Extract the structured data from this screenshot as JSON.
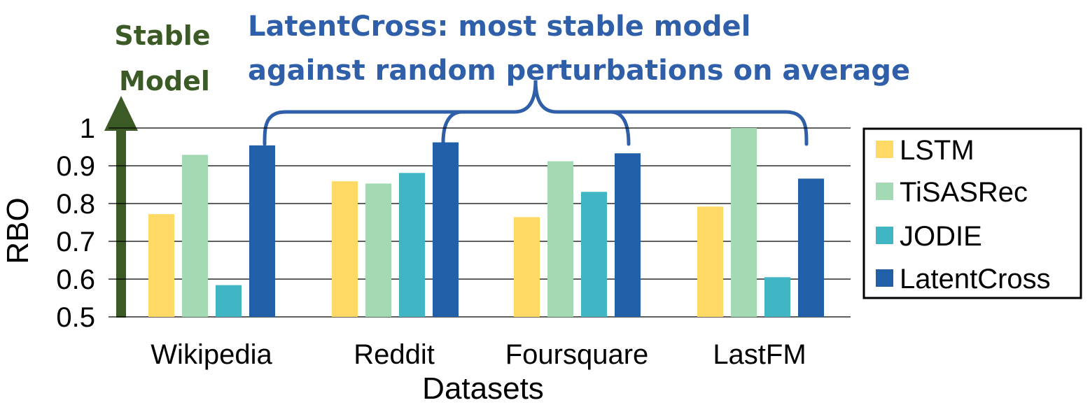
{
  "chart_data": {
    "type": "bar",
    "categories": [
      "Wikipedia",
      "Reddit",
      "Foursquare",
      "LastFM"
    ],
    "series": [
      {
        "name": "LSTM",
        "color": "#FFD966",
        "values": [
          0.772,
          0.859,
          0.764,
          0.792
        ]
      },
      {
        "name": "TiSASRec",
        "color": "#A3DAB4",
        "values": [
          0.929,
          0.853,
          0.912,
          1.0
        ]
      },
      {
        "name": "JODIE",
        "color": "#40B6C4",
        "values": [
          0.584,
          0.881,
          0.831,
          0.605
        ]
      },
      {
        "name": "LatentCross",
        "color": "#215FA8",
        "values": [
          0.954,
          0.962,
          0.933,
          0.866
        ]
      }
    ],
    "xlabel": "Datasets",
    "ylabel": "RBO",
    "ylim": [
      0.5,
      1.0
    ],
    "yticks": [
      "0.5",
      "0.6",
      "0.7",
      "0.8",
      "0.9",
      "1"
    ],
    "grid": true,
    "legend": "right",
    "annotation_lines": [
      "LatentCross: most stable model",
      "against random perturbations on average"
    ],
    "annotation_color": "#2E5FA8",
    "stable_label_lines": [
      "Stable",
      "Model"
    ],
    "stable_color": "#3C5A25"
  }
}
